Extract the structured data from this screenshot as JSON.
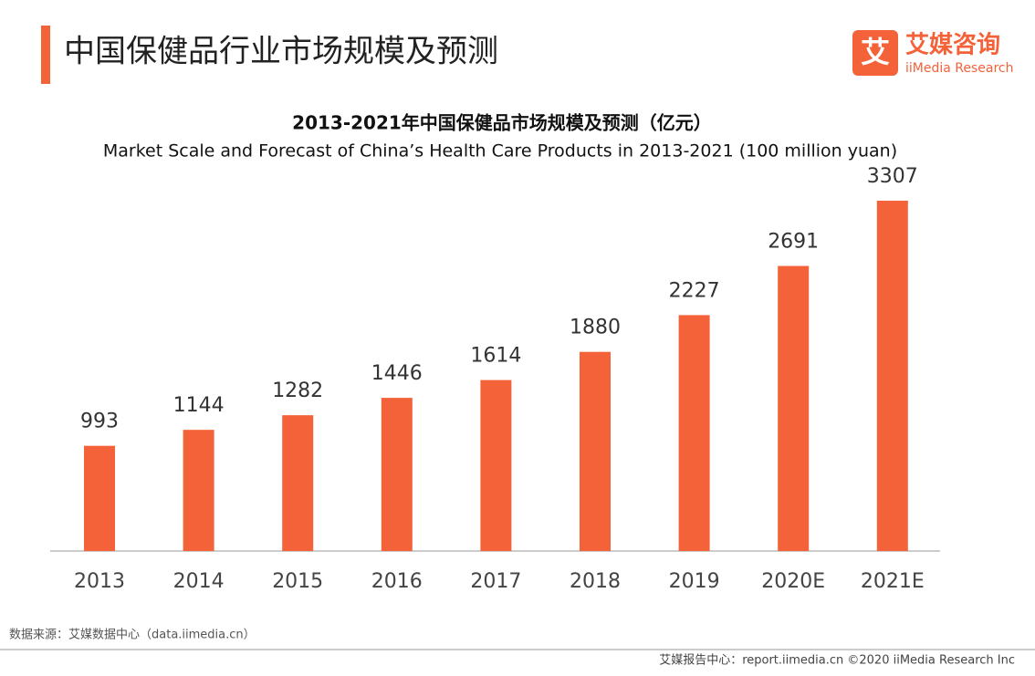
{
  "header": {
    "title": "中国保健品行业市场规模及预测"
  },
  "logo": {
    "name": "艾媒咨询",
    "sub": "iiMedia Research",
    "icon": "艾"
  },
  "chart_data": {
    "type": "bar",
    "title": "2013-2021年中国保健品市场规模及预测（亿元）",
    "subtitle": "Market Scale and Forecast of China’s Health Care Products in 2013-2021 (100 million yuan)",
    "categories": [
      "2013",
      "2014",
      "2015",
      "2016",
      "2017",
      "2018",
      "2019",
      "2020E",
      "2021E"
    ],
    "values": [
      993,
      1144,
      1282,
      1446,
      1614,
      1880,
      2227,
      2691,
      3307
    ],
    "color": "#f4623a"
  },
  "footer": {
    "source": "数据来源：艾媒数据中心（data.iimedia.cn）",
    "copyright": "艾媒报告中心：report.iimedia.cn ©2020  iiMedia Research  Inc"
  }
}
